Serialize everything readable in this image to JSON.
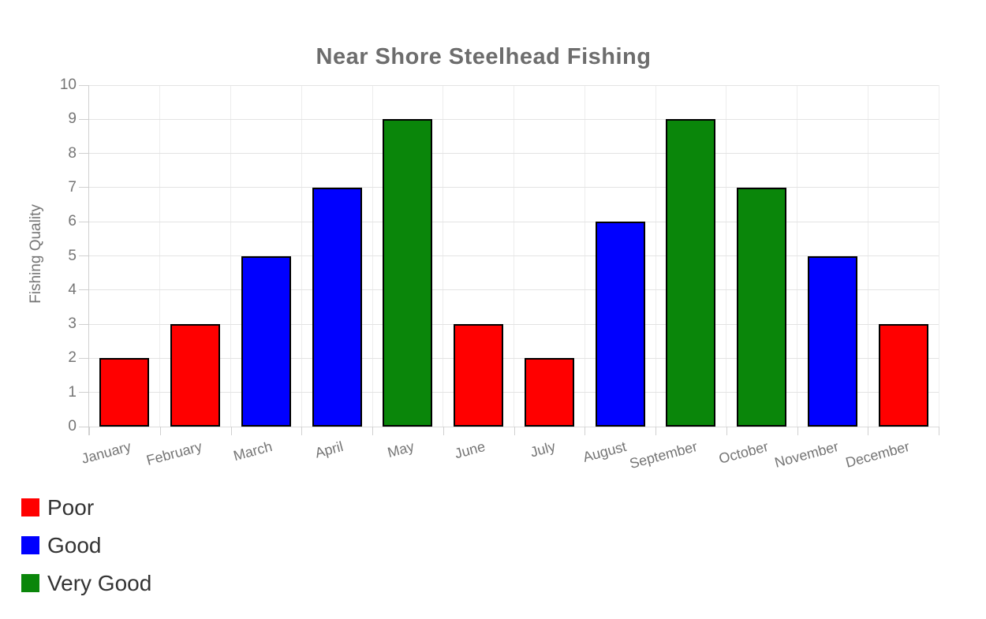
{
  "chart_data": {
    "type": "bar",
    "title": "Near Shore Steelhead Fishing",
    "xlabel": "",
    "ylabel": "Fishing Quality",
    "categories": [
      "January",
      "February",
      "March",
      "April",
      "May",
      "June",
      "July",
      "August",
      "September",
      "October",
      "November",
      "December"
    ],
    "values": [
      2,
      3,
      5,
      7,
      9,
      3,
      2,
      6,
      9,
      7,
      5,
      3
    ],
    "month_quality": [
      "Poor",
      "Poor",
      "Good",
      "Good",
      "Very Good",
      "Poor",
      "Poor",
      "Good",
      "Very Good",
      "Very Good",
      "Good",
      "Poor"
    ],
    "ylim": [
      0,
      10
    ],
    "ytick_step": 1,
    "grid": true,
    "legend_position": "bottom-left",
    "legend": [
      {
        "label": "Poor",
        "color": "#ff0000"
      },
      {
        "label": "Good",
        "color": "#0000ff"
      },
      {
        "label": "Very Good",
        "color": "#0a860a"
      }
    ],
    "style": {
      "bar_border_color": "#000000",
      "title_color": "#6d6d6d",
      "axis_text_color": "#757575",
      "legend_text_color": "#333333",
      "gridline_color": "#e3e3e3",
      "background": "#ffffff"
    }
  }
}
